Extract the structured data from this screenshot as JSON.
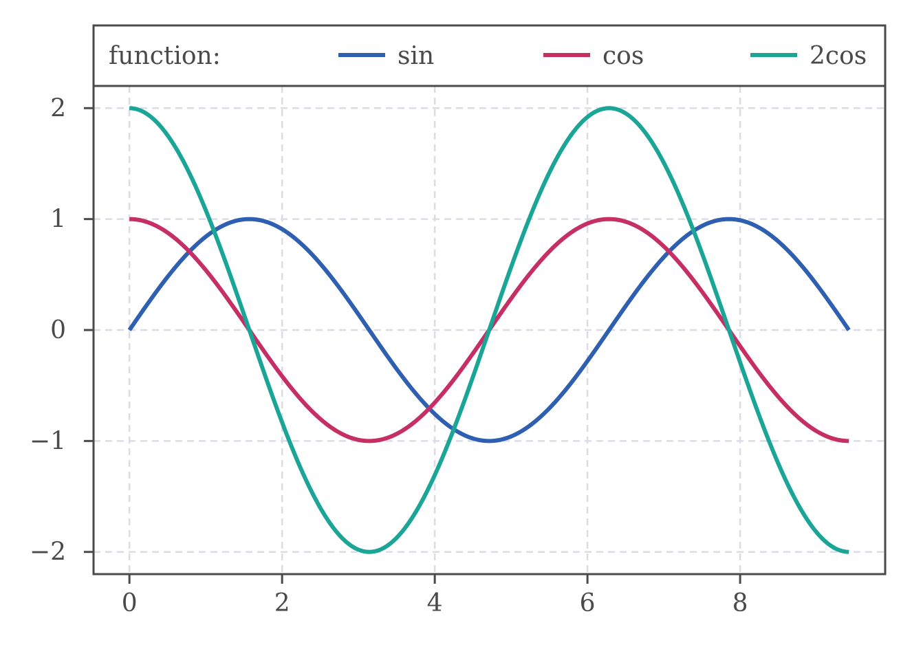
{
  "chart_data": {
    "type": "line",
    "legend": {
      "title": "function:",
      "placement": "top"
    },
    "series": [
      {
        "name": "sin",
        "color": "#2f5fb0",
        "formula": "sin(x)"
      },
      {
        "name": "cos",
        "color": "#c62f64",
        "formula": "cos(x)"
      },
      {
        "name": "2cos",
        "color": "#1aa596",
        "formula": "2cos(x)"
      }
    ],
    "x_range": [
      0,
      9.42478
    ],
    "samples": 241,
    "xlim": [
      -0.47,
      9.9
    ],
    "ylim": [
      -2.2,
      2.2
    ],
    "xticks": [
      0,
      2,
      4,
      6,
      8
    ],
    "xtick_labels": [
      "0",
      "2",
      "4",
      "6",
      "8"
    ],
    "yticks": [
      2,
      1,
      0,
      -1,
      -2
    ],
    "ytick_labels": [
      "2",
      "1",
      "0",
      "−1",
      "−2"
    ],
    "grid": true,
    "grid_style": "dashed",
    "xlabel": "",
    "ylabel": "",
    "title": ""
  }
}
